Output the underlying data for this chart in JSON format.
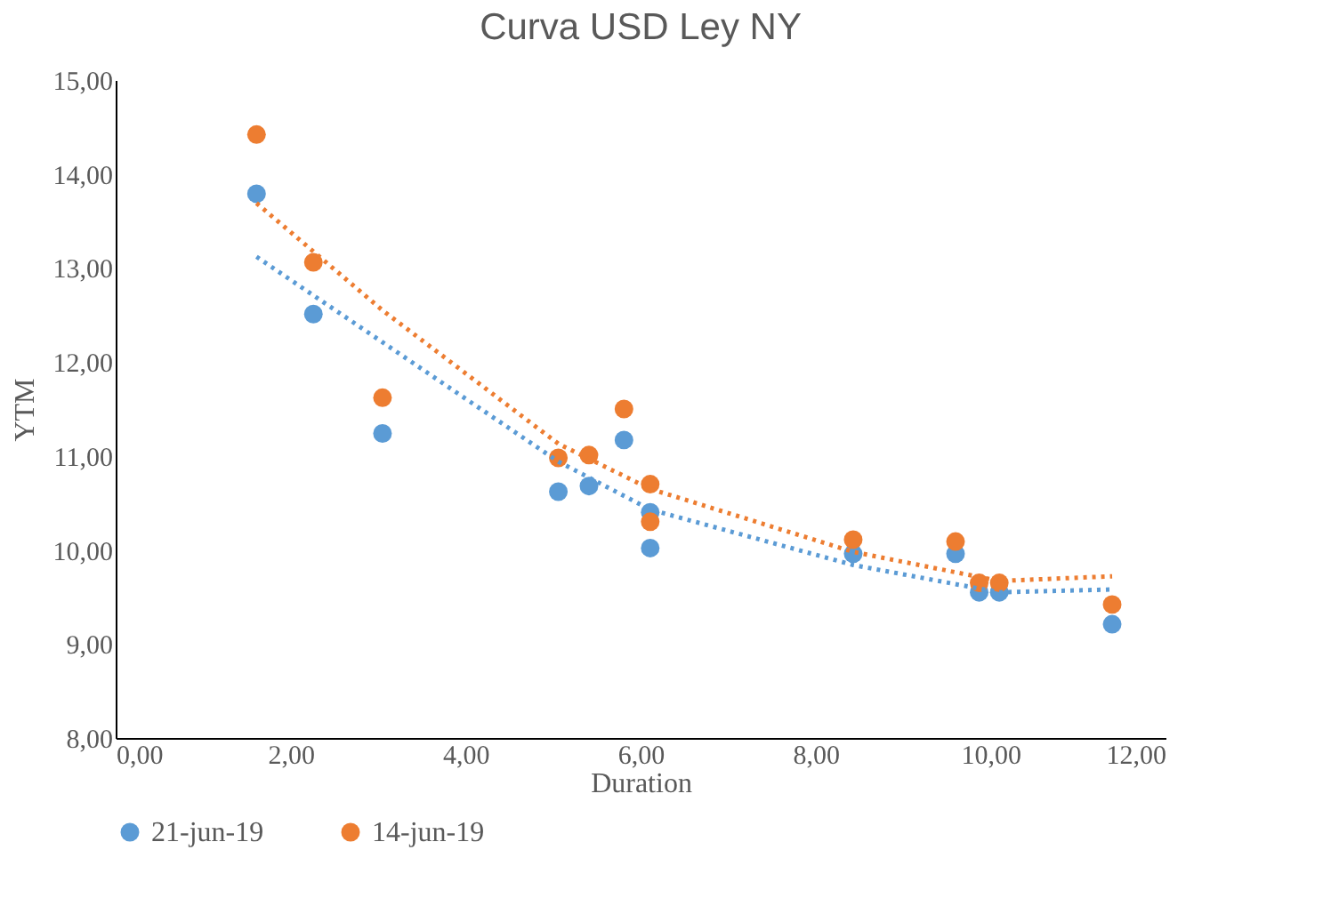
{
  "chart_data": {
    "type": "scatter",
    "title": "Curva USD Ley NY",
    "xlabel": "Duration",
    "ylabel": "YTM",
    "series": [
      {
        "name": "21-jun-19",
        "color": "#5b9bd5",
        "x": [
          1.61,
          2.26,
          3.05,
          5.06,
          5.41,
          5.81,
          6.11,
          6.11,
          8.43,
          9.6,
          9.87,
          10.1,
          11.39
        ],
        "values": [
          13.79,
          12.51,
          11.24,
          10.62,
          10.68,
          11.17,
          10.02,
          10.4,
          9.96,
          9.96,
          9.55,
          9.55,
          9.21
        ]
      },
      {
        "name": "14-jun-19",
        "color": "#ed7d31",
        "x": [
          1.61,
          2.26,
          3.05,
          5.06,
          5.41,
          5.81,
          6.11,
          6.11,
          8.43,
          9.6,
          9.87,
          10.1,
          11.39
        ],
        "values": [
          14.42,
          13.06,
          11.62,
          10.98,
          11.01,
          11.5,
          10.7,
          10.3,
          10.11,
          10.09,
          9.65,
          9.65,
          9.42
        ]
      },
      {
        "color": "#5b9bd5",
        "type": "line",
        "line_style": "dotted",
        "marker": "none",
        "x": [
          1.61,
          3.05,
          5.06,
          6.11,
          8.43,
          10.1,
          11.39
        ],
        "values": [
          13.12,
          12.21,
          10.94,
          10.43,
          9.84,
          9.55,
          9.58
        ]
      },
      {
        "color": "#ed7d31",
        "type": "line",
        "line_style": "dotted",
        "marker": "none",
        "x": [
          1.61,
          3.05,
          5.06,
          6.11,
          8.43,
          10.1,
          11.39
        ],
        "values": [
          13.69,
          12.55,
          11.13,
          10.65,
          9.98,
          9.67,
          9.72
        ]
      }
    ],
    "xlim": [
      0,
      12
    ],
    "xticks": [
      {
        "value": 0,
        "label": "0,00"
      },
      {
        "value": 2,
        "label": "2,00"
      },
      {
        "value": 4,
        "label": "4,00"
      },
      {
        "value": 6,
        "label": "6,00"
      },
      {
        "value": 8,
        "label": "8,00"
      },
      {
        "value": 10,
        "label": "10,00"
      },
      {
        "value": 12,
        "label": "12,00"
      }
    ],
    "ylim": [
      8,
      15
    ],
    "yticks": [
      {
        "value": 8,
        "label": "8,00"
      },
      {
        "value": 9,
        "label": "9,00"
      },
      {
        "value": 10,
        "label": "10,00"
      },
      {
        "value": 11,
        "label": "11,00"
      },
      {
        "value": 12,
        "label": "12,00"
      },
      {
        "value": 13,
        "label": "13,00"
      },
      {
        "value": 14,
        "label": "14,00"
      },
      {
        "value": 15,
        "label": "15,00"
      }
    ],
    "grid": false,
    "legend": "bottom",
    "marker": "circle"
  }
}
